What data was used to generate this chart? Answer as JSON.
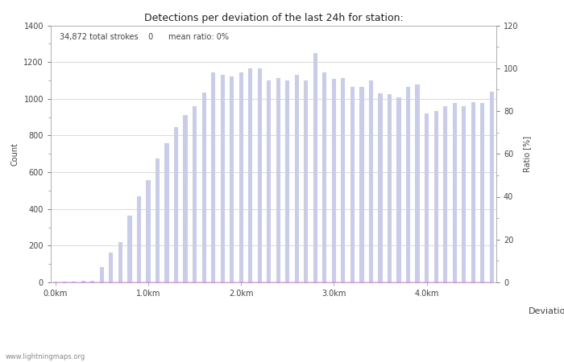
{
  "title": "Detections per deviation of the last 24h for station:",
  "subtitle": "34,872 total strokes    0      mean ratio: 0%",
  "xlabel": "Deviations",
  "ylabel_left": "Count",
  "ylabel_right": "Ratio [%]",
  "x_tick_labels": [
    "0.0km",
    "1.0km",
    "2.0km",
    "3.0km",
    "4.0km"
  ],
  "x_tick_positions": [
    0,
    10,
    20,
    30,
    40
  ],
  "ylim_left": [
    0,
    1400
  ],
  "ylim_right": [
    0,
    120
  ],
  "yticks_left": [
    0,
    200,
    400,
    600,
    800,
    1000,
    1200,
    1400
  ],
  "yticks_right": [
    0,
    20,
    40,
    60,
    80,
    100,
    120
  ],
  "bar_color_light": "#c8ccee",
  "bar_color_dark": "#5566cc",
  "line_color": "#ff00ff",
  "watermark": "www.lightningmaps.org",
  "deviation_values": [
    5,
    5,
    5,
    10,
    10,
    85,
    160,
    220,
    365,
    470,
    555,
    675,
    760,
    845,
    910,
    960,
    1035,
    1145,
    1130,
    1120,
    1145,
    1165,
    1165,
    1100,
    1115,
    1100,
    1130,
    1100,
    1250,
    1145,
    1110,
    1115,
    1065,
    1065,
    1100,
    1030,
    1025,
    1010,
    1065,
    1080,
    920,
    935,
    960,
    975,
    960,
    980,
    975,
    1040
  ],
  "station_values": [
    0,
    0,
    0,
    0,
    0,
    0,
    0,
    0,
    0,
    0,
    0,
    0,
    0,
    0,
    0,
    0,
    0,
    0,
    0,
    0,
    0,
    0,
    0,
    0,
    0,
    0,
    0,
    0,
    0,
    0,
    0,
    0,
    0,
    0,
    0,
    0,
    0,
    0,
    0,
    0,
    0,
    0,
    0,
    0,
    0,
    0,
    0,
    0
  ],
  "percentage_values": [
    0,
    0,
    0,
    0,
    0,
    0,
    0,
    0,
    0,
    0,
    0,
    0,
    0,
    0,
    0,
    0,
    0,
    0,
    0,
    0,
    0,
    0,
    0,
    0,
    0,
    0,
    0,
    0,
    0,
    0,
    0,
    0,
    0,
    0,
    0,
    0,
    0,
    0,
    0,
    0,
    0,
    0,
    0,
    0,
    0,
    0,
    0,
    0
  ],
  "n_bars": 48,
  "background_color": "#ffffff",
  "grid_color": "#cccccc"
}
